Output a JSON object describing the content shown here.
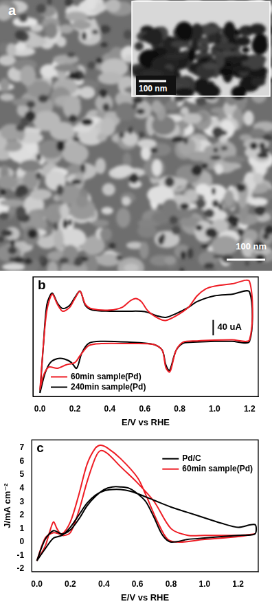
{
  "image_panel": {
    "label": "a",
    "scale_bar": "100 nm",
    "inset_scale_bar": "100 nm"
  },
  "chart_data": [
    {
      "type": "line",
      "title": "b",
      "x_label": "E/V vs RHE",
      "scale_bar": {
        "value": 40,
        "label": "40 uA"
      },
      "xlim": [
        -0.04,
        1.25
      ],
      "xticks": [
        {
          "value": 0,
          "label": "0.0"
        },
        0.2,
        0.4,
        0.6,
        0.8,
        {
          "value": 1,
          "label": "1.0"
        },
        1.2
      ],
      "ylim": [
        -150,
        160
      ],
      "tick_labels": "x",
      "grid": false,
      "legend": "lower left",
      "series": [
        {
          "name": "60min sample(Pd)",
          "color": "#ee1c24",
          "x": [
            0,
            0.02,
            0.04,
            0.07,
            0.1,
            0.13,
            0.17,
            0.2,
            0.23,
            0.26,
            0.3,
            0.4,
            0.47,
            0.52,
            0.55,
            0.58,
            0.62,
            0.68,
            0.72,
            0.78,
            0.85,
            0.9,
            0.95,
            1.0,
            1.1,
            1.2,
            1.2,
            1.1,
            1.0,
            0.9,
            0.82,
            0.78,
            0.75,
            0.74,
            0.72,
            0.7,
            0.65,
            0.5,
            0.35,
            0.28,
            0.23,
            0.2,
            0.15,
            0.1,
            0.05,
            0.02,
            0
          ],
          "values": [
            -133,
            -15,
            74,
            115,
            89,
            71,
            81,
            104,
            123,
            89,
            77,
            74,
            81,
            99,
            104,
            96,
            71,
            52,
            47,
            59,
            81,
            111,
            129,
            136,
            142,
            148,
            -3,
            -3,
            -4,
            -6,
            -9,
            -30,
            -80,
            -87,
            -74,
            -30,
            -15,
            -13,
            -13,
            -18,
            -44,
            -62,
            -68,
            -77,
            -74,
            -96,
            -133
          ]
        },
        {
          "name": "240min sample(Pd)",
          "color": "#000000",
          "x": [
            0,
            0.02,
            0.04,
            0.07,
            0.1,
            0.13,
            0.17,
            0.2,
            0.23,
            0.26,
            0.3,
            0.4,
            0.5,
            0.6,
            0.67,
            0.72,
            0.78,
            0.85,
            0.9,
            1.0,
            1.1,
            1.2,
            1.2,
            1.1,
            1.0,
            0.9,
            0.82,
            0.78,
            0.75,
            0.74,
            0.72,
            0.7,
            0.65,
            0.5,
            0.35,
            0.28,
            0.24,
            0.21,
            0.18,
            0.14,
            0.1,
            0.06,
            0.03,
            0
          ],
          "values": [
            -141,
            -15,
            89,
            118,
            92,
            78,
            86,
            107,
            123,
            86,
            74,
            71,
            71,
            70,
            59,
            55,
            65,
            81,
            96,
            111,
            115,
            121,
            -7,
            -7,
            -7,
            -9,
            -12,
            -30,
            -74,
            -83,
            -67,
            -30,
            -15,
            -9,
            -7,
            -12,
            -37,
            -77,
            -62,
            -53,
            -52,
            -62,
            -89,
            -141
          ]
        }
      ]
    },
    {
      "type": "line",
      "title": "c",
      "x_label": "E/V vs RHE",
      "y_label": "J/mA cm⁻²",
      "xlim": [
        -0.03,
        1.32
      ],
      "xticks": [
        {
          "value": 0,
          "label": "0.0"
        },
        0.2,
        0.4,
        0.6,
        0.8,
        {
          "value": 1,
          "label": "1.0"
        },
        1.2
      ],
      "ylim": [
        -2.2,
        7.6
      ],
      "yticks": [
        -2,
        -1,
        0,
        1,
        2,
        3,
        4,
        5,
        6,
        7
      ],
      "grid": false,
      "legend": "upper right",
      "series": [
        {
          "name": "Pd/C",
          "color": "#000000",
          "x": [
            0,
            0.05,
            0.1,
            0.15,
            0.2,
            0.25,
            0.3,
            0.35,
            0.4,
            0.45,
            0.5,
            0.55,
            0.6,
            0.7,
            0.8,
            0.9,
            1.0,
            1.1,
            1.2,
            1.3,
            1.3,
            1.2,
            1.0,
            0.9,
            0.8,
            0.75,
            0.7,
            0.65,
            0.6,
            0.55,
            0.5,
            0.45,
            0.4,
            0.35,
            0.3,
            0.25,
            0.2,
            0.15,
            0.1,
            0.05,
            0
          ],
          "values": [
            -1.4,
            -0.5,
            0.3,
            0.5,
            1.1,
            2.0,
            2.9,
            3.5,
            3.8,
            3.9,
            3.9,
            3.8,
            3.6,
            3.1,
            2.6,
            2.2,
            1.8,
            1.4,
            1.1,
            1.3,
            0.6,
            0.5,
            0.3,
            0.2,
            0.0,
            0.5,
            1.8,
            3.0,
            3.6,
            4.0,
            4.1,
            4.1,
            3.9,
            3.4,
            2.7,
            1.7,
            0.9,
            0.6,
            0.85,
            0.2,
            -1.4
          ]
        },
        {
          "name": "60min sample(Pd)",
          "color": "#ee1c24",
          "x": [
            0,
            0.05,
            0.08,
            0.1,
            0.12,
            0.15,
            0.2,
            0.25,
            0.3,
            0.35,
            0.38,
            0.42,
            0.5,
            0.6,
            0.7,
            0.8,
            0.9,
            1.0,
            1.1,
            1.2,
            1.3,
            1.3,
            1.2,
            1.0,
            0.85,
            0.78,
            0.72,
            0.65,
            0.6,
            0.5,
            0.42,
            0.38,
            0.35,
            0.3,
            0.25,
            0.2,
            0.15,
            0.1,
            0.05,
            0
          ],
          "values": [
            -1.4,
            -0.3,
            0.9,
            1.5,
            1.0,
            0.5,
            0.7,
            2.3,
            4.5,
            6.3,
            6.8,
            6.6,
            5.6,
            4.4,
            3.0,
            1.0,
            0.5,
            0.5,
            0.5,
            0.5,
            0.6,
            0.6,
            0.4,
            0.2,
            0.0,
            0.2,
            1.5,
            3.5,
            4.8,
            6.2,
            7.0,
            7.2,
            7.0,
            5.8,
            3.5,
            1.5,
            0.6,
            0.7,
            0.3,
            -1.4
          ]
        }
      ]
    }
  ]
}
